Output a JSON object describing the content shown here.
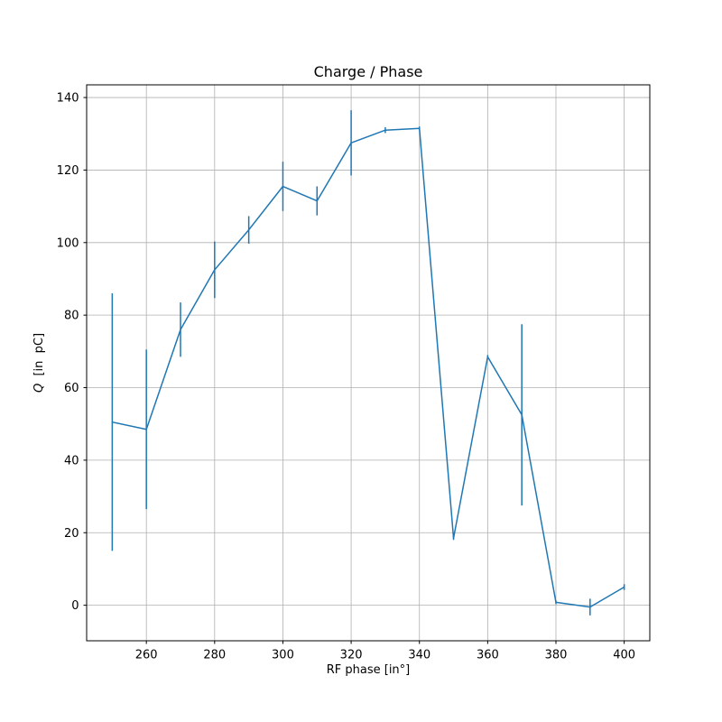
{
  "chart_data": {
    "type": "line",
    "title": "Charge / Phase",
    "xlabel": "RF phase [in°]",
    "ylabel": "Q  [in  pC]",
    "ylabel_parts": [
      {
        "text": "Q",
        "italic": true
      },
      {
        "text": "  [in  pC]",
        "italic": false
      }
    ],
    "x": [
      250,
      260,
      270,
      280,
      290,
      300,
      310,
      320,
      330,
      340,
      350,
      360,
      370,
      380,
      390,
      400
    ],
    "y": [
      50.5,
      48.5,
      76.0,
      92.5,
      103.5,
      115.5,
      111.5,
      127.5,
      131.0,
      131.5,
      18.5,
      68.5,
      52.5,
      0.8,
      -0.5,
      5.0
    ],
    "yerr": [
      35.5,
      22.0,
      7.5,
      7.8,
      3.8,
      6.8,
      4.0,
      9.0,
      0.8,
      0.5,
      0.5,
      0.5,
      25.0,
      0.5,
      2.3,
      0.8
    ],
    "xlim": [
      242.5,
      407.5
    ],
    "ylim": [
      -9.8,
      143.5
    ],
    "xticks": [
      260,
      280,
      300,
      320,
      340,
      360,
      380,
      400
    ],
    "yticks": [
      0,
      20,
      40,
      60,
      80,
      100,
      120,
      140
    ],
    "grid": true,
    "legend": null,
    "colors": {
      "line": "#1f77b4",
      "errorbar": "#1f77b4",
      "grid": "#b0b0b0",
      "spine": "#000000",
      "text": "#000000",
      "background": "#ffffff"
    },
    "style": {
      "line_width": 1.5,
      "errorbar_width": 1.5,
      "grid_width": 0.8,
      "spine_width": 1.0,
      "tick_length": 3.5,
      "tick_font_size": 13,
      "label_font_size": 13,
      "title_font_size": 16
    }
  }
}
